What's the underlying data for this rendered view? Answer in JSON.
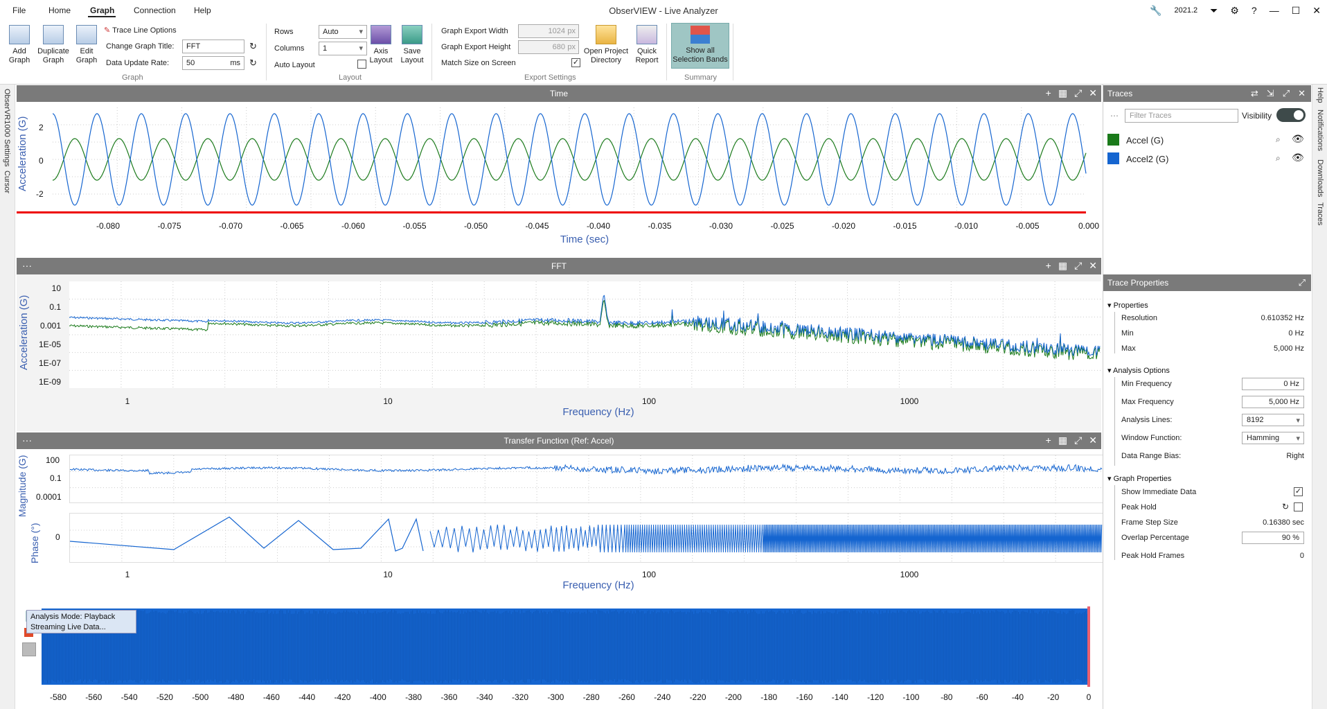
{
  "window": {
    "title": "ObserVIEW - Live Analyzer",
    "version": "2021.2"
  },
  "menu": [
    "File",
    "Home",
    "Graph",
    "Connection",
    "Help"
  ],
  "ribbon": {
    "graph": {
      "add": "Add Graph",
      "duplicate": "Duplicate Graph",
      "edit": "Edit Graph",
      "trace_line_options": "Trace Line Options",
      "change_title_label": "Change Graph Title:",
      "title_value": "FFT",
      "update_rate_label": "Data Update Rate:",
      "update_rate_value": "50",
      "update_rate_unit": "ms",
      "group": "Graph"
    },
    "layout": {
      "rows_label": "Rows",
      "rows_value": "Auto",
      "columns_label": "Columns",
      "columns_value": "1",
      "auto_layout_label": "Auto Layout",
      "axis_layout": "Axis Layout",
      "save_layout": "Save Layout",
      "group": "Layout"
    },
    "export": {
      "width_label": "Graph Export Width",
      "width_value": "1024",
      "width_unit": "px",
      "height_label": "Graph Export Height",
      "height_value": "680",
      "height_unit": "px",
      "match_label": "Match Size on Screen",
      "open_dir": "Open Project Directory",
      "quick_report": "Quick Report",
      "group": "Export Settings"
    },
    "summary": {
      "show_bands": "Show all Selection Bands",
      "group": "Summary"
    }
  },
  "left_tabs": [
    "ObserVR1000 Settings",
    "Cursor"
  ],
  "right_tabs": [
    "Help",
    "Notifications",
    "Downloads",
    "Traces"
  ],
  "graphs": {
    "time": {
      "title": "Time",
      "ylabel": "Acceleration (G)",
      "xlabel": "Time (sec)",
      "yticks": [
        "2",
        "0",
        "-2"
      ],
      "xticks": [
        "-0.080",
        "-0.075",
        "-0.070",
        "-0.065",
        "-0.060",
        "-0.055",
        "-0.050",
        "-0.045",
        "-0.040",
        "-0.035",
        "-0.030",
        "-0.025",
        "-0.020",
        "-0.015",
        "-0.010",
        "-0.005",
        "0.000"
      ]
    },
    "fft": {
      "title": "FFT",
      "ylabel": "Acceleration (G)",
      "xlabel": "Frequency (Hz)",
      "yticks": [
        "10",
        "0.1",
        "0.001",
        "1E-05",
        "1E-07",
        "1E-09"
      ],
      "xticks": [
        "1",
        "10",
        "100",
        "1000"
      ]
    },
    "tf": {
      "title": "Transfer Function (Ref: Accel)",
      "ylabel_mag": "Magnitude (G)",
      "ylabel_phase": "Phase (°)",
      "xlabel": "Frequency (Hz)",
      "mag_yticks": [
        "100",
        "0.1",
        "0.0001"
      ],
      "phase_yticks": [
        "0"
      ],
      "xticks": [
        "1",
        "10",
        "100",
        "1000"
      ]
    }
  },
  "bottom": {
    "status_line1": "Analysis Mode: Playback",
    "status_line2": "Streaming Live Data...",
    "xticks": [
      "-580",
      "-560",
      "-540",
      "-520",
      "-500",
      "-480",
      "-460",
      "-440",
      "-420",
      "-400",
      "-380",
      "-360",
      "-340",
      "-320",
      "-300",
      "-280",
      "-260",
      "-240",
      "-220",
      "-200",
      "-180",
      "-160",
      "-140",
      "-120",
      "-100",
      "-80",
      "-60",
      "-40",
      "-20",
      "0"
    ]
  },
  "traces": {
    "title": "Traces",
    "filter_placeholder": "Filter Traces",
    "visibility_label": "Visibility",
    "items": [
      {
        "name": "Accel (G)",
        "color": "#1a7a1a"
      },
      {
        "name": "Accel2 (G)",
        "color": "#1565d0"
      }
    ]
  },
  "trace_properties": {
    "title": "Trace Properties",
    "properties_label": "Properties",
    "resolution_label": "Resolution",
    "resolution_value": "0.610352 Hz",
    "min_label": "Min",
    "min_value": "0 Hz",
    "max_label": "Max",
    "max_value": "5,000 Hz",
    "analysis_label": "Analysis Options",
    "min_freq_label": "Min Frequency",
    "min_freq_value": "0",
    "min_freq_unit": "Hz",
    "max_freq_label": "Max Frequency",
    "max_freq_value": "5,000",
    "max_freq_unit": "Hz",
    "analysis_lines_label": "Analysis Lines:",
    "analysis_lines_value": "8192",
    "window_fn_label": "Window Function:",
    "window_fn_value": "Hamming",
    "bias_label": "Data Range Bias:",
    "bias_value": "Right",
    "graph_props_label": "Graph Properties",
    "show_immediate_label": "Show Immediate Data",
    "peak_hold_label": "Peak Hold",
    "frame_step_label": "Frame Step Size",
    "frame_step_value": "0.16380 sec",
    "overlap_label": "Overlap Percentage",
    "overlap_value": "90",
    "overlap_unit": "%",
    "peak_frames_label": "Peak Hold Frames",
    "peak_frames_value": "0"
  }
}
